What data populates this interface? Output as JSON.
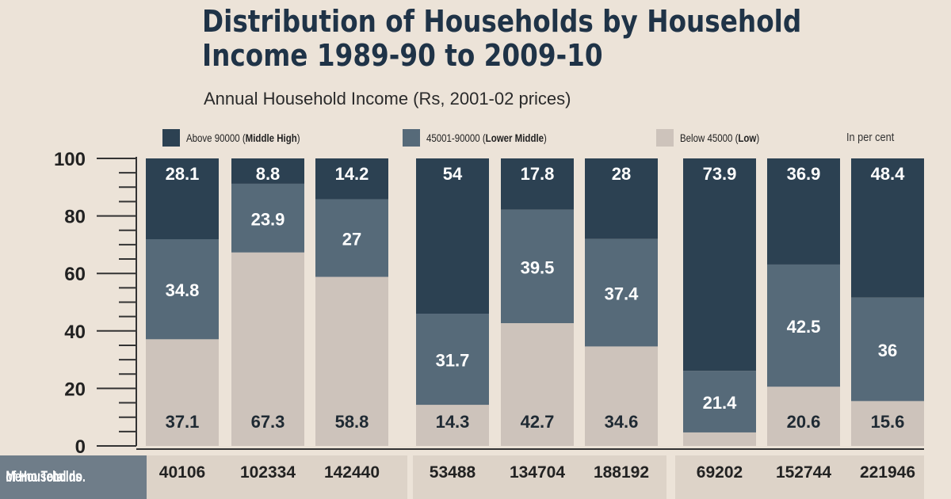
{
  "title_line1": "Distribution of Households by Household",
  "title_line2": "Income 1989-90 to 2009-10",
  "subtitle": "Annual Household Income (Rs, 2001-02 prices)",
  "unit_note": "In per cent",
  "memo": {
    "label_line1": "Memo:Total no.",
    "label_line2": "of Households",
    "values": [
      "40106",
      "102334",
      "142440",
      "53488",
      "134704",
      "188192",
      "69202",
      "152744",
      "221946"
    ]
  },
  "colors": {
    "high": "#2c4152",
    "middle": "#566a79",
    "low": "#cdc3bb",
    "background": "#ece3d8",
    "label_light": "#ffffff",
    "label_dark": "#1f2a33"
  },
  "chart_data": {
    "type": "bar",
    "stacked": true,
    "ylim": [
      0,
      100
    ],
    "yticks": [
      0,
      20,
      40,
      60,
      80,
      100
    ],
    "ytick_labels": [
      "0",
      "20",
      "40",
      "60",
      "80",
      "100"
    ],
    "legend_position": "top",
    "series": [
      {
        "name": "Below 45000 (Low)",
        "legend_plain": "Below 45000 (",
        "legend_bold": "Low",
        "legend_end": ")",
        "values": [
          37.1,
          67.3,
          58.8,
          14.3,
          42.7,
          34.6,
          4.7,
          20.6,
          15.6
        ]
      },
      {
        "name": "45001-90000 (Lower Middle)",
        "legend_plain": "45001-90000 (",
        "legend_bold": "Lower Middle",
        "legend_end": ")",
        "values": [
          34.8,
          23.9,
          27,
          31.7,
          39.5,
          37.4,
          21.4,
          42.5,
          36
        ]
      },
      {
        "name": "Above 90000 (Middle High)",
        "legend_plain": "Above 90000 (",
        "legend_bold": "Middle High",
        "legend_end": ")",
        "values": [
          28.1,
          8.8,
          14.2,
          54,
          17.8,
          28,
          73.9,
          36.9,
          48.4
        ]
      }
    ]
  }
}
